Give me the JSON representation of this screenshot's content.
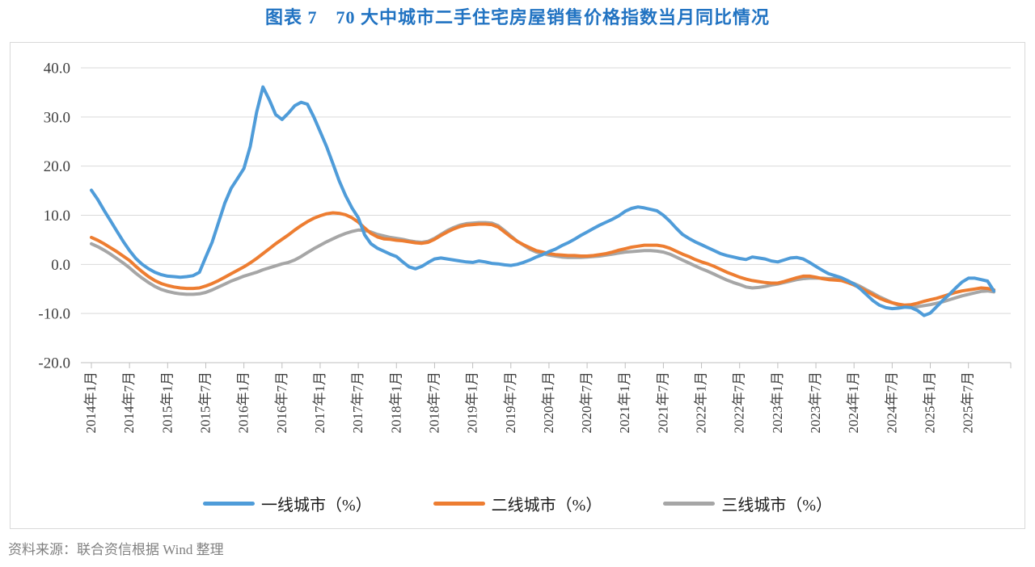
{
  "page": {
    "title": "图表 7　70 大中城市二手住宅房屋销售价格指数当月同比情况",
    "source_note": "资料来源：联合资信根据 Wind 整理"
  },
  "chart_data": {
    "type": "line",
    "title": "图表 7　70 大中城市二手住宅房屋销售价格指数当月同比情况",
    "x_frequency": "monthly",
    "x_start": "2014年1月",
    "x_end": "2025年11月",
    "x_tick_labels": [
      "2014年1月",
      "2014年7月",
      "2015年1月",
      "2015年7月",
      "2016年1月",
      "2016年7月",
      "2017年1月",
      "2017年7月",
      "2018年1月",
      "2018年7月",
      "2019年1月",
      "2019年7月",
      "2020年1月",
      "2020年7月",
      "2021年1月",
      "2021年7月",
      "2022年1月",
      "2022年7月",
      "2023年1月",
      "2023年7月",
      "2024年1月",
      "2024年7月",
      "2025年1月",
      "2025年7月"
    ],
    "months_per_tick": 6,
    "y_tick_labels": [
      "40.0",
      "30.0",
      "20.0",
      "10.0",
      "0.0",
      "-10.0",
      "-20.0"
    ],
    "ylim": [
      -20,
      40
    ],
    "grid": "horizontal",
    "grid_color": "#D9D9D9",
    "axis_color": "#BFBFBF",
    "tick_label_color": "#404040",
    "legend_position": "bottom",
    "series": [
      {
        "name": "一线城市（%）",
        "color": "#4F9CD9",
        "values": [
          15.1,
          13.2,
          11.0,
          8.9,
          6.8,
          4.7,
          2.8,
          1.2,
          0.0,
          -0.9,
          -1.6,
          -2.1,
          -2.4,
          -2.5,
          -2.6,
          -2.5,
          -2.3,
          -1.6,
          1.5,
          4.5,
          8.5,
          12.5,
          15.5,
          17.5,
          19.5,
          24.0,
          31.0,
          36.1,
          33.5,
          30.5,
          29.5,
          30.8,
          32.3,
          33.0,
          32.6,
          30.0,
          27.0,
          24.0,
          20.5,
          17.0,
          14.0,
          11.5,
          9.5,
          6.0,
          4.2,
          3.3,
          2.7,
          2.1,
          1.6,
          0.5,
          -0.5,
          -0.9,
          -0.4,
          0.4,
          1.1,
          1.3,
          1.1,
          0.9,
          0.7,
          0.5,
          0.4,
          0.7,
          0.5,
          0.2,
          0.1,
          -0.1,
          -0.2,
          0.0,
          0.4,
          0.9,
          1.5,
          2.0,
          2.6,
          3.1,
          3.8,
          4.4,
          5.1,
          5.9,
          6.6,
          7.3,
          8.0,
          8.6,
          9.2,
          9.9,
          10.8,
          11.4,
          11.7,
          11.5,
          11.2,
          10.9,
          10.0,
          8.8,
          7.4,
          6.1,
          5.3,
          4.6,
          4.0,
          3.4,
          2.8,
          2.2,
          1.8,
          1.5,
          1.2,
          1.0,
          1.5,
          1.3,
          1.1,
          0.7,
          0.5,
          0.9,
          1.3,
          1.4,
          1.1,
          0.4,
          -0.4,
          -1.2,
          -1.9,
          -2.3,
          -2.7,
          -3.3,
          -4.0,
          -5.0,
          -6.2,
          -7.4,
          -8.3,
          -8.8,
          -9.0,
          -8.9,
          -8.7,
          -8.8,
          -9.4,
          -10.4,
          -9.9,
          -8.6,
          -7.3,
          -6.1,
          -4.8,
          -3.6,
          -2.8,
          -2.8,
          -3.1,
          -3.4,
          -5.4
        ]
      },
      {
        "name": "二线城市（%）",
        "color": "#ED7D31",
        "values": [
          5.5,
          4.9,
          4.2,
          3.4,
          2.6,
          1.7,
          0.8,
          -0.4,
          -1.5,
          -2.5,
          -3.3,
          -3.9,
          -4.3,
          -4.6,
          -4.8,
          -4.9,
          -4.9,
          -4.8,
          -4.4,
          -3.9,
          -3.3,
          -2.6,
          -1.9,
          -1.2,
          -0.5,
          0.3,
          1.2,
          2.2,
          3.2,
          4.2,
          5.1,
          6.0,
          7.0,
          7.9,
          8.7,
          9.4,
          9.9,
          10.3,
          10.5,
          10.4,
          10.1,
          9.5,
          8.6,
          7.4,
          6.3,
          5.6,
          5.2,
          5.1,
          4.9,
          4.8,
          4.6,
          4.4,
          4.3,
          4.5,
          5.1,
          5.9,
          6.6,
          7.2,
          7.7,
          8.0,
          8.1,
          8.2,
          8.2,
          8.1,
          7.6,
          6.6,
          5.6,
          4.7,
          4.0,
          3.4,
          2.8,
          2.5,
          2.2,
          2.0,
          1.9,
          1.8,
          1.8,
          1.7,
          1.7,
          1.8,
          2.0,
          2.2,
          2.5,
          2.9,
          3.2,
          3.5,
          3.7,
          3.9,
          3.9,
          3.9,
          3.7,
          3.3,
          2.7,
          2.1,
          1.6,
          1.0,
          0.5,
          0.1,
          -0.4,
          -1.0,
          -1.6,
          -2.1,
          -2.6,
          -3.0,
          -3.3,
          -3.5,
          -3.7,
          -3.8,
          -3.8,
          -3.5,
          -3.1,
          -2.7,
          -2.4,
          -2.4,
          -2.6,
          -2.9,
          -3.1,
          -3.2,
          -3.3,
          -3.7,
          -4.2,
          -4.8,
          -5.5,
          -6.2,
          -6.9,
          -7.4,
          -7.8,
          -8.1,
          -8.3,
          -8.2,
          -7.9,
          -7.5,
          -7.2,
          -6.9,
          -6.5,
          -6.1,
          -5.7,
          -5.4,
          -5.2,
          -5.0,
          -4.8,
          -4.9,
          -5.2
        ]
      },
      {
        "name": "三线城市（%）",
        "color": "#A6A6A6",
        "values": [
          4.2,
          3.6,
          2.9,
          2.1,
          1.2,
          0.3,
          -0.7,
          -1.8,
          -2.8,
          -3.7,
          -4.5,
          -5.1,
          -5.5,
          -5.8,
          -6.0,
          -6.1,
          -6.1,
          -6.0,
          -5.7,
          -5.2,
          -4.6,
          -4.0,
          -3.4,
          -2.9,
          -2.4,
          -2.0,
          -1.6,
          -1.1,
          -0.7,
          -0.3,
          0.1,
          0.4,
          0.9,
          1.6,
          2.4,
          3.2,
          3.9,
          4.6,
          5.2,
          5.8,
          6.3,
          6.7,
          7.0,
          6.9,
          6.6,
          6.1,
          5.8,
          5.5,
          5.3,
          5.1,
          4.8,
          4.6,
          4.5,
          4.7,
          5.3,
          6.1,
          6.9,
          7.5,
          8.0,
          8.3,
          8.4,
          8.5,
          8.5,
          8.4,
          7.9,
          6.9,
          5.8,
          4.7,
          3.9,
          3.1,
          2.5,
          2.2,
          1.9,
          1.7,
          1.5,
          1.4,
          1.4,
          1.4,
          1.5,
          1.6,
          1.7,
          1.9,
          2.1,
          2.3,
          2.5,
          2.6,
          2.7,
          2.8,
          2.8,
          2.7,
          2.5,
          2.1,
          1.5,
          0.9,
          0.3,
          -0.3,
          -0.9,
          -1.4,
          -2.0,
          -2.6,
          -3.2,
          -3.7,
          -4.1,
          -4.6,
          -4.8,
          -4.7,
          -4.5,
          -4.2,
          -4.0,
          -3.7,
          -3.4,
          -3.1,
          -2.9,
          -2.8,
          -2.8,
          -2.8,
          -2.9,
          -2.9,
          -3.0,
          -3.4,
          -3.9,
          -4.5,
          -5.2,
          -5.9,
          -6.6,
          -7.2,
          -7.8,
          -8.3,
          -8.6,
          -8.7,
          -8.6,
          -8.4,
          -8.2,
          -7.9,
          -7.6,
          -7.2,
          -6.8,
          -6.4,
          -6.1,
          -5.8,
          -5.5,
          -5.4,
          -5.6
        ]
      }
    ]
  }
}
